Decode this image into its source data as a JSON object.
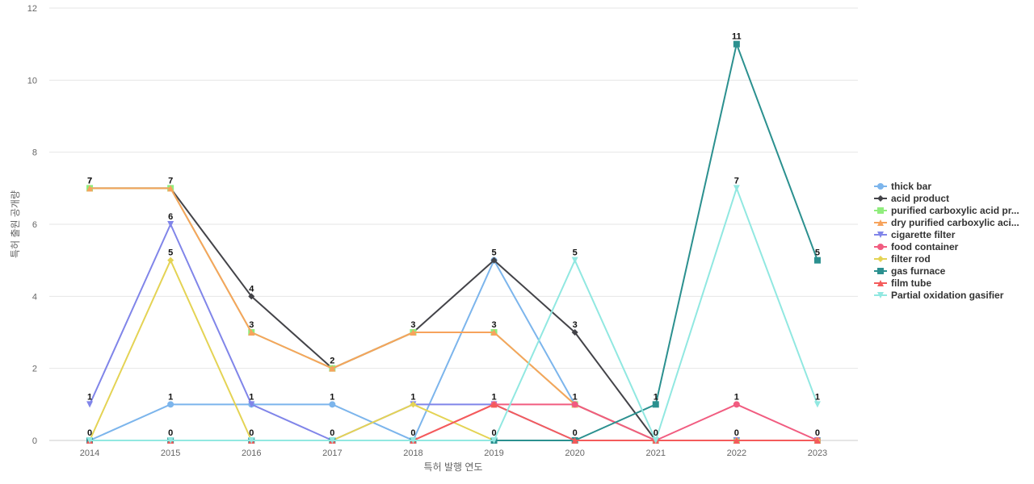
{
  "chart_data": {
    "type": "line",
    "xlabel": "특허 발행 연도",
    "ylabel": "특허 출원 공개량",
    "ylim": [
      0,
      12
    ],
    "y_ticks": [
      0,
      2,
      4,
      6,
      8,
      10,
      12
    ],
    "grid": "horizontal",
    "legend_position": "right",
    "categories": [
      "2014",
      "2015",
      "2016",
      "2017",
      "2018",
      "2019",
      "2020",
      "2021",
      "2022",
      "2023"
    ],
    "series": [
      {
        "name": "thick bar",
        "color": "#7cb5ec",
        "marker": "circle",
        "values": [
          0,
          1,
          1,
          1,
          0,
          5,
          1,
          0,
          0,
          0
        ]
      },
      {
        "name": "acid product",
        "color": "#434348",
        "marker": "diamond",
        "values": [
          7,
          7,
          4,
          2,
          3,
          5,
          3,
          0,
          0,
          0
        ]
      },
      {
        "name": "purified carboxylic acid pr...",
        "color": "#90ed7d",
        "marker": "square",
        "values": [
          7,
          7,
          3,
          2,
          3,
          3,
          1,
          0,
          0,
          0
        ]
      },
      {
        "name": "dry purified carboxylic aci...",
        "color": "#f7a35c",
        "marker": "triangle",
        "values": [
          7,
          7,
          3,
          2,
          3,
          3,
          1,
          0,
          0,
          0
        ]
      },
      {
        "name": "cigarette filter",
        "color": "#8085e9",
        "marker": "triangle-down",
        "values": [
          1,
          6,
          1,
          0,
          1,
          1,
          0,
          0,
          0,
          0
        ]
      },
      {
        "name": "food container",
        "color": "#f15c80",
        "marker": "circle",
        "values": [
          0,
          0,
          0,
          0,
          0,
          1,
          1,
          0,
          1,
          0
        ]
      },
      {
        "name": "filter rod",
        "color": "#e4d354",
        "marker": "diamond",
        "values": [
          0,
          5,
          0,
          0,
          1,
          0,
          0,
          0,
          0,
          0
        ]
      },
      {
        "name": "gas furnace",
        "color": "#2b908f",
        "marker": "square",
        "values": [
          0,
          0,
          0,
          0,
          0,
          0,
          0,
          1,
          11,
          5
        ]
      },
      {
        "name": "film tube",
        "color": "#f45b5b",
        "marker": "triangle",
        "values": [
          0,
          0,
          0,
          0,
          0,
          1,
          0,
          0,
          0,
          0
        ]
      },
      {
        "name": "Partial oxidation gasifier",
        "color": "#91e8e1",
        "marker": "triangle-down",
        "values": [
          0,
          0,
          0,
          0,
          0,
          0,
          5,
          0,
          7,
          1
        ]
      }
    ],
    "data_labels": [
      {
        "x": "2014",
        "labels": [
          "7",
          "7",
          "1",
          "0"
        ]
      },
      {
        "x": "2015",
        "labels": [
          "7",
          "6",
          "5",
          "1",
          "0"
        ]
      },
      {
        "x": "2016",
        "labels": [
          "4",
          "3",
          "1",
          "0"
        ]
      },
      {
        "x": "2017",
        "labels": [
          "2",
          "1",
          "0"
        ]
      },
      {
        "x": "2018",
        "labels": [
          "3",
          "1",
          "0"
        ]
      },
      {
        "x": "2019",
        "labels": [
          "5",
          "3",
          "1",
          "0"
        ]
      },
      {
        "x": "2020",
        "labels": [
          "5",
          "3",
          "1",
          "0"
        ]
      },
      {
        "x": "2021",
        "labels": [
          "1",
          "0"
        ]
      },
      {
        "x": "2022",
        "labels": [
          "11",
          "7",
          "1",
          "0"
        ]
      },
      {
        "x": "2023",
        "labels": [
          "5",
          "1",
          "0"
        ]
      }
    ]
  }
}
